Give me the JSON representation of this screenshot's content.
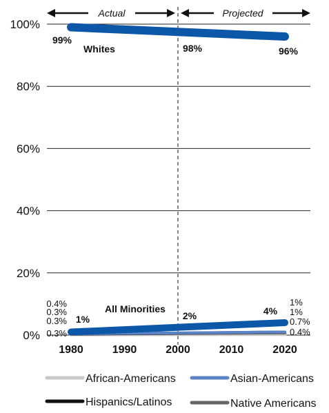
{
  "chart_data": {
    "type": "line",
    "title": "",
    "xlabel": "",
    "ylabel": "",
    "x": [
      1980,
      1990,
      2000,
      2010,
      2020
    ],
    "xlim": [
      1980,
      2020
    ],
    "ylim": [
      0,
      100
    ],
    "y_ticks": [
      "0%",
      "20%",
      "40%",
      "60%",
      "80%",
      "100%"
    ],
    "x_ticks": [
      "1980",
      "1990",
      "2000",
      "2010",
      "2020"
    ],
    "grid": true,
    "divider_x": 2000,
    "periods": [
      {
        "label": "Actual"
      },
      {
        "label": "Projected"
      }
    ],
    "series": [
      {
        "name": "Whites",
        "color": "#0d57a8",
        "x": [
          1980,
          2020
        ],
        "y": [
          99,
          96
        ],
        "point_labels": [
          {
            "x": 1980,
            "text": "99%"
          },
          {
            "x": 2000,
            "text": "98%"
          },
          {
            "x": 2020,
            "text": "96%"
          }
        ]
      },
      {
        "name": "All Minorities",
        "color": "#0d57a8",
        "x": [
          1980,
          2020
        ],
        "y": [
          1,
          4
        ],
        "point_labels": [
          {
            "x": 1980,
            "text": "1%"
          },
          {
            "x": 2000,
            "text": "2%"
          },
          {
            "x": 2020,
            "text": "4%"
          }
        ]
      },
      {
        "name": "African-Americans",
        "color": "#c8c8c8",
        "x": [
          1980,
          2020
        ],
        "y": [
          0.3,
          0.4
        ]
      },
      {
        "name": "Asian-Americans",
        "color": "#5b84c8",
        "x": [
          1980,
          2020
        ],
        "y": [
          0.4,
          1
        ]
      },
      {
        "name": "Hispanics/Latinos",
        "color": "#111111",
        "x": [
          1980,
          2020
        ],
        "y": [
          0.3,
          1
        ]
      },
      {
        "name": "Native Americans",
        "color": "#666666",
        "x": [
          1980,
          2020
        ],
        "y": [
          0.3,
          0.7
        ]
      }
    ],
    "left_end_labels": [
      "0.4%",
      "0.3%",
      "0.3%",
      "0.3%"
    ],
    "right_end_labels": [
      "1%",
      "1%",
      "0.7%",
      "0.4%"
    ],
    "legend": [
      {
        "name": "African-Americans",
        "color": "#c8c8c8"
      },
      {
        "name": "Asian-Americans",
        "color": "#5b84c8"
      },
      {
        "name": "Hispanics/Latinos",
        "color": "#111111"
      },
      {
        "name": "Native Americans",
        "color": "#666666"
      }
    ]
  }
}
